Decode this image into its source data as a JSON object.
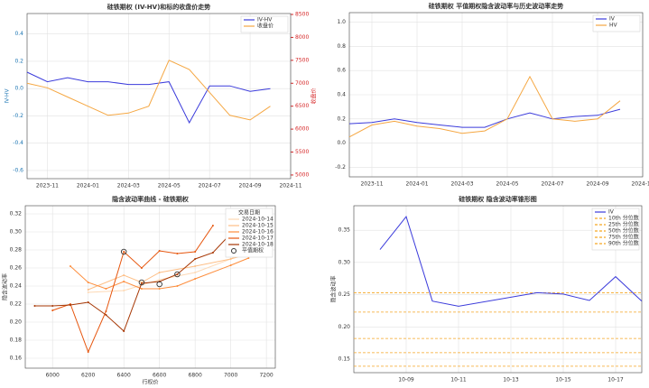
{
  "chart_data": [
    {
      "type": "line",
      "title": "硅铁期权 (IV-HV)和标的收盘价走势",
      "ylabel": "IV-HV",
      "y2label": "收盘价",
      "y_color": "#1f77b4",
      "y2_color": "#d62728",
      "x": [
        "2023-10",
        "2023-11",
        "2023-12",
        "2024-01",
        "2024-02",
        "2024-03",
        "2024-04",
        "2024-05",
        "2024-06",
        "2024-07",
        "2024-08",
        "2024-09",
        "2024-10"
      ],
      "xlim": [
        "2023-10",
        "2024-11"
      ],
      "xticks": [
        "2023-11",
        "2024-01",
        "2024-03",
        "2024-05",
        "2024-07",
        "2024-09",
        "2024-11"
      ],
      "ylim": [
        -0.66,
        0.55
      ],
      "yticks": [
        -0.6,
        -0.4,
        -0.2,
        {
          "value": 0,
          "label": "0.0"
        },
        0.2,
        0.4
      ],
      "y2lim": [
        4920,
        8520
      ],
      "y2ticks": [
        5000,
        5500,
        6000,
        6500,
        7000,
        7500,
        8000,
        8500
      ],
      "grid": true,
      "legend": "upper right",
      "series": [
        {
          "name": "IV-HV",
          "color": "#3b3bdb",
          "values": [
            0.12,
            0.05,
            0.08,
            0.05,
            0.05,
            0.03,
            0.03,
            0.05,
            -0.25,
            0.02,
            0.02,
            -0.02,
            0.0
          ]
        },
        {
          "name": "收盘价",
          "color": "#f5a742",
          "axis": "y2",
          "values": [
            7000,
            6900,
            6700,
            6500,
            6300,
            6350,
            6500,
            7500,
            7300,
            6800,
            6300,
            6200,
            6500
          ]
        }
      ]
    },
    {
      "type": "line",
      "title": "硅铁期权 平值期权隐含波动率与历史波动率走势",
      "x": [
        "2023-10",
        "2023-11",
        "2023-12",
        "2024-01",
        "2024-02",
        "2024-03",
        "2024-04",
        "2024-05",
        "2024-06",
        "2024-07",
        "2024-08",
        "2024-09",
        "2024-10"
      ],
      "xlim": [
        "2023-10",
        "2024-11"
      ],
      "xticks": [
        "2023-11",
        "2024-01",
        "2024-03",
        "2024-05",
        "2024-07",
        "2024-09",
        "2024-11"
      ],
      "ylim": [
        -0.28,
        1.08
      ],
      "yticks": [
        -0.2,
        {
          "value": 0,
          "label": "0.0"
        },
        0.2,
        0.4,
        0.6,
        0.8,
        {
          "value": 1,
          "label": "1.0"
        }
      ],
      "grid": true,
      "legend": "upper right",
      "series": [
        {
          "name": "IV",
          "color": "#3b3bdb",
          "values": [
            0.16,
            0.17,
            0.2,
            0.17,
            0.15,
            0.13,
            0.13,
            0.2,
            0.25,
            0.2,
            0.22,
            0.23,
            0.28
          ]
        },
        {
          "name": "HV",
          "color": "#f5a742",
          "values": [
            0.05,
            0.15,
            0.18,
            0.14,
            0.12,
            0.08,
            0.1,
            0.2,
            0.55,
            0.2,
            0.18,
            0.2,
            0.35
          ]
        }
      ]
    },
    {
      "type": "line",
      "title": "隐含波动率曲线 - 硅铁期权",
      "xlabel": "行权价",
      "ylabel": "隐含波动率",
      "xlim": [
        5847,
        7250
      ],
      "xticks": [
        6000,
        6200,
        6400,
        6600,
        6800,
        7000,
        7200
      ],
      "ylim": [
        0.149,
        0.329
      ],
      "yticks": [
        0.16,
        0.18,
        {
          "value": 0.2,
          "label": "0.20"
        },
        0.22,
        0.24,
        0.26,
        0.28,
        {
          "value": 0.3,
          "label": "0.30"
        },
        0.32
      ],
      "grid": true,
      "legend": "upper right",
      "legend_title": "交易日期",
      "series": [
        {
          "name": "2024-10-14",
          "color": "#fdd9b5",
          "x": [
            6200,
            6400,
            6600,
            6800,
            7000,
            7200
          ],
          "values": [
            0.233,
            0.235,
            0.247,
            0.255,
            0.27,
            0.295
          ]
        },
        {
          "name": "2024-10-15",
          "color": "#fdbe85",
          "x": [
            6200,
            6400,
            6500,
            6600,
            6800,
            7000,
            7200
          ],
          "values": [
            0.236,
            0.252,
            0.244,
            0.255,
            0.262,
            0.27,
            0.281
          ]
        },
        {
          "name": "2024-10-16",
          "color": "#fd8d3c",
          "x": [
            6100,
            6200,
            6300,
            6400,
            6500,
            6600,
            6700,
            6800,
            7000,
            7100
          ],
          "values": [
            0.262,
            0.244,
            0.237,
            0.245,
            0.237,
            0.237,
            0.24,
            0.248,
            0.263,
            0.271
          ]
        },
        {
          "name": "2024-10-17",
          "color": "#e6550d",
          "x": [
            6000,
            6100,
            6200,
            6300,
            6400,
            6500,
            6600,
            6700,
            6800,
            6900
          ],
          "values": [
            0.213,
            0.22,
            0.167,
            0.212,
            0.278,
            0.26,
            0.279,
            0.276,
            0.278,
            0.307
          ]
        },
        {
          "name": "2024-10-18",
          "color": "#a63603",
          "x": [
            5900,
            6000,
            6100,
            6200,
            6300,
            6400,
            6500,
            6600,
            6700,
            6800,
            6900,
            7000
          ],
          "values": [
            0.218,
            0.218,
            0.219,
            0.222,
            0.208,
            0.19,
            0.243,
            0.245,
            0.253,
            0.27,
            0.277,
            0.298
          ]
        },
        {
          "name": "平值期权",
          "color": "#333333",
          "marker": "o",
          "x": [
            6400,
            6500,
            6600,
            6700
          ],
          "values": [
            0.278,
            0.244,
            0.242,
            0.253
          ]
        }
      ]
    },
    {
      "type": "line",
      "title": "硅铁期权 隐含波动率锥形图",
      "ylabel": "隐含波动率",
      "x": [
        "10-08",
        "10-09",
        "10-10",
        "10-11",
        "10-14",
        "10-15",
        "10-16",
        "10-17",
        "10-18"
      ],
      "xlim": [
        "10-07",
        "10-18"
      ],
      "xticks": [
        "10-09",
        "10-11",
        "10-13",
        "10-15",
        "10-17"
      ],
      "ylim": [
        0.129,
        0.388
      ],
      "yticks": [
        0.15,
        {
          "value": 0.2,
          "label": "0.20"
        },
        0.25,
        {
          "value": 0.3,
          "label": "0.30"
        },
        0.35
      ],
      "grid": true,
      "legend": "upper right",
      "series": [
        {
          "name": "IV",
          "color": "#3b3bdb",
          "values": [
            0.32,
            0.371,
            0.24,
            0.232,
            0.253,
            0.251,
            0.241,
            0.278,
            0.24
          ]
        }
      ],
      "reference_lines": [
        {
          "name": "10th 分位数",
          "color": "#f5a623",
          "value": 0.139
        },
        {
          "name": "25th 分位数",
          "color": "#f5a623",
          "value": 0.16
        },
        {
          "name": "50th 分位数",
          "color": "#f5a623",
          "value": 0.182
        },
        {
          "name": "75th 分位数",
          "color": "#f5a623",
          "value": 0.223
        },
        {
          "name": "90th 分位数",
          "color": "#f5a623",
          "value": 0.253
        }
      ]
    }
  ]
}
